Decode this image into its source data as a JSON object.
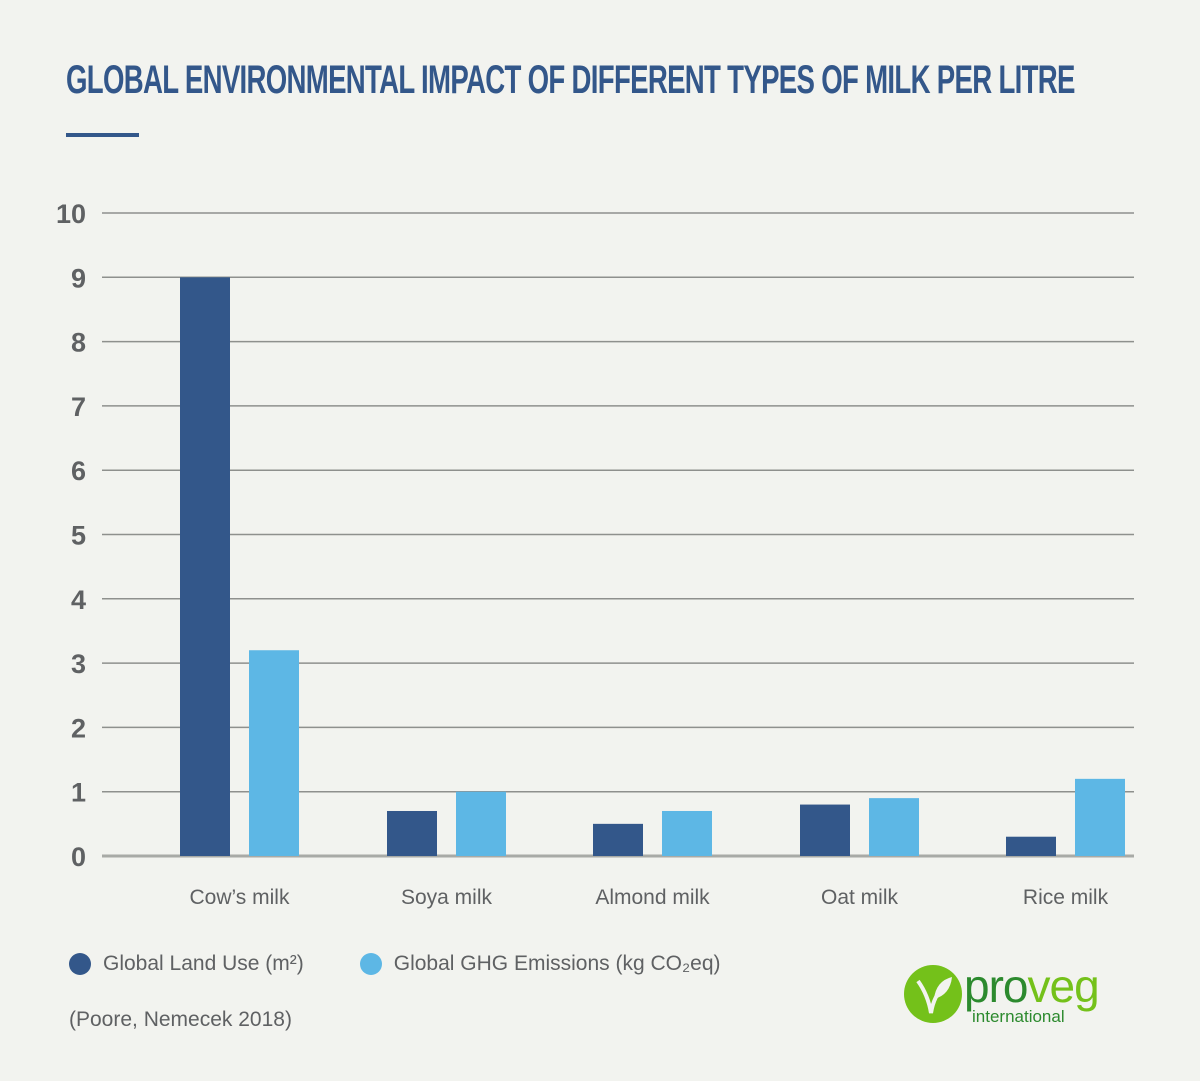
{
  "title": "GLOBAL ENVIRONMENTAL IMPACT OF DIFFERENT TYPES OF MILK PER LITRE",
  "colors": {
    "accent": "#33578a",
    "land_use": "#33578a",
    "ghg": "#5db7e5",
    "grid": "#a8aaa6",
    "text": "#5f6163",
    "background": "#f2f3ef"
  },
  "chart_data": {
    "type": "bar",
    "title": "GLOBAL ENVIRONMENTAL IMPACT OF DIFFERENT TYPES OF MILK PER LITRE",
    "xlabel": "",
    "ylabel": "",
    "categories": [
      "Cow’s milk",
      "Soya milk",
      "Almond milk",
      "Oat milk",
      "Rice milk"
    ],
    "series": [
      {
        "name": "Global Land Use (m²)",
        "color": "#33578a",
        "values": [
          9,
          0.7,
          0.5,
          0.8,
          0.3
        ]
      },
      {
        "name": "Global GHG Emissions (kg CO₂eq)",
        "color": "#5db7e5",
        "values": [
          3.2,
          1.0,
          0.7,
          0.9,
          1.2
        ]
      }
    ],
    "ylim": [
      0,
      10
    ],
    "yticks": [
      "0",
      "1",
      "2",
      "3",
      "4",
      "5",
      "6",
      "7",
      "8",
      "9",
      "10"
    ],
    "grid": true,
    "legend_position": "bottom-left"
  },
  "legend": {
    "land_use": "Global Land Use (m²)",
    "ghg": "Global GHG Emissions (kg CO₂eq)"
  },
  "source": "(Poore, Nemecek 2018)",
  "logo": {
    "brand_pro": "pro",
    "brand_veg": "veg",
    "sub": "international"
  }
}
